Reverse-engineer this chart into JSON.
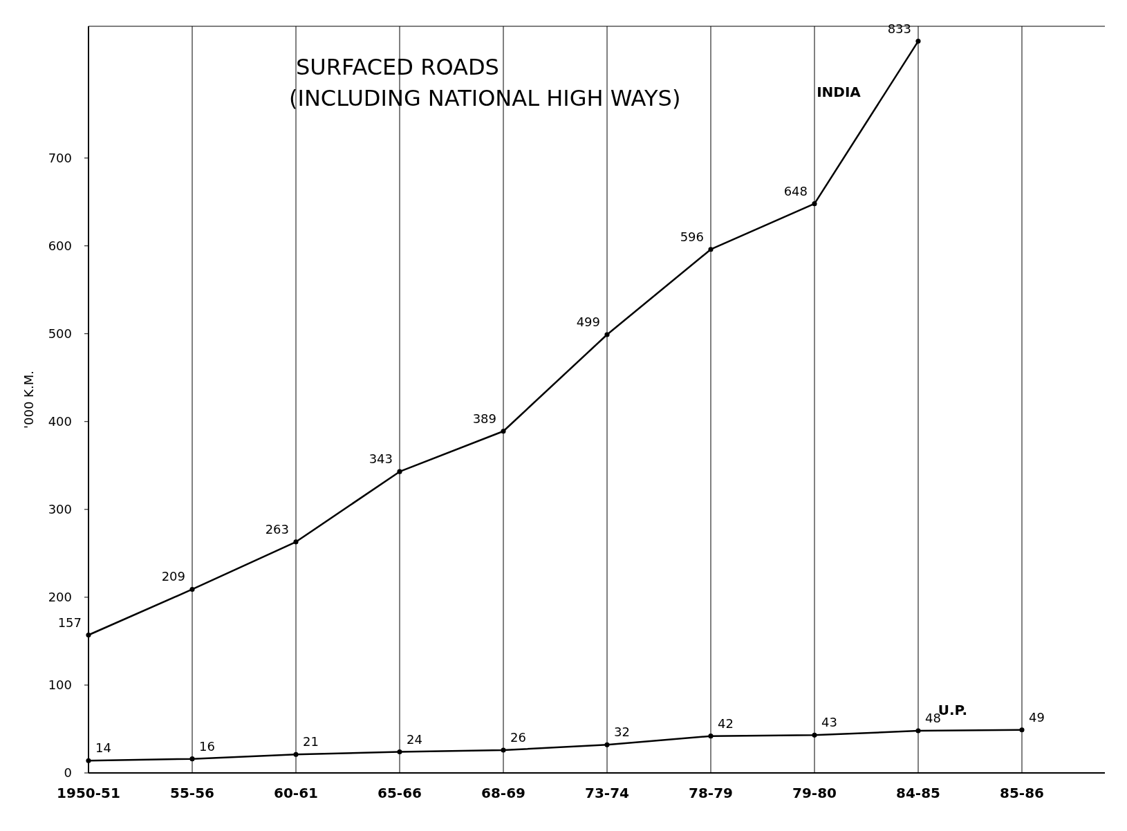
{
  "chart_data": {
    "type": "line",
    "title": "SURFACED ROADS",
    "subtitle": "(INCLUDING NATIONAL HIGH WAYS)",
    "ylabel": "'000 K.M.",
    "categories": [
      "1950-51",
      "55-56",
      "60-61",
      "65-66",
      "68-69",
      "73-74",
      "78-79",
      "79-80",
      "84-85",
      "85-86"
    ],
    "series": [
      {
        "name": "INDIA",
        "color": "#000000",
        "values": [
          157,
          209,
          263,
          343,
          389,
          499,
          596,
          648,
          833,
          null
        ]
      },
      {
        "name": "U.P.",
        "color": "#000000",
        "values": [
          14,
          16,
          21,
          24,
          26,
          32,
          42,
          43,
          48,
          49
        ]
      }
    ],
    "ylim": [
      0,
      850
    ],
    "yticks": [
      0,
      100,
      200,
      300,
      400,
      500,
      600,
      700
    ],
    "grid": "x",
    "marker": "circle",
    "line_style": "solid",
    "data_labels": true
  }
}
